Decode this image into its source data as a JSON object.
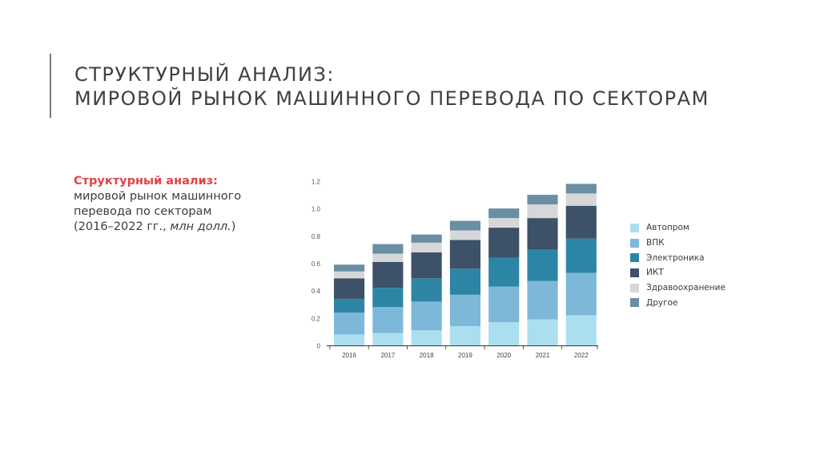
{
  "slide": {
    "title_line1": "СТРУКТУРНЫЙ АНАЛИЗ:",
    "title_line2": "МИРОВОЙ РЫНОК МАШИННОГО ПЕРЕВОДА ПО СЕКТОРАМ"
  },
  "caption": {
    "heading": "Структурный анализ:",
    "line1": "мировой рынок машинного",
    "line2": "перевода по секторам",
    "line3_prefix": "(2016–2022 гг., ",
    "line3_italic": "млн долл.",
    "line3_suffix": ")"
  },
  "chart_data": {
    "type": "bar",
    "stacked": true,
    "categories": [
      "2016",
      "2017",
      "2018",
      "2019",
      "2020",
      "2021",
      "2022"
    ],
    "ylim": [
      0,
      1.2
    ],
    "yticks": [
      0,
      0.2,
      0.4,
      0.6,
      0.8,
      1.0,
      1.2
    ],
    "ytick_labels": [
      "0",
      "0.2",
      "0.4",
      "0.6",
      "0.8",
      "1.0",
      "1.2"
    ],
    "grid": false,
    "legend_position": "right",
    "series": [
      {
        "name": "Автопром",
        "color": "#abdff0",
        "values": [
          0.08,
          0.09,
          0.11,
          0.14,
          0.17,
          0.19,
          0.22
        ]
      },
      {
        "name": "ВПК",
        "color": "#7db8d8",
        "values": [
          0.16,
          0.19,
          0.21,
          0.23,
          0.26,
          0.28,
          0.31
        ]
      },
      {
        "name": "Электроника",
        "color": "#2d85a6",
        "values": [
          0.1,
          0.14,
          0.17,
          0.19,
          0.21,
          0.23,
          0.25
        ]
      },
      {
        "name": "ИКТ",
        "color": "#3d5168",
        "values": [
          0.15,
          0.19,
          0.19,
          0.21,
          0.22,
          0.23,
          0.24
        ]
      },
      {
        "name": "Здравоохранение",
        "color": "#d5d7d9",
        "values": [
          0.05,
          0.06,
          0.07,
          0.07,
          0.07,
          0.1,
          0.09
        ]
      },
      {
        "name": "Другое",
        "color": "#6a8ea3",
        "values": [
          0.05,
          0.07,
          0.06,
          0.07,
          0.07,
          0.07,
          0.07
        ]
      }
    ]
  }
}
